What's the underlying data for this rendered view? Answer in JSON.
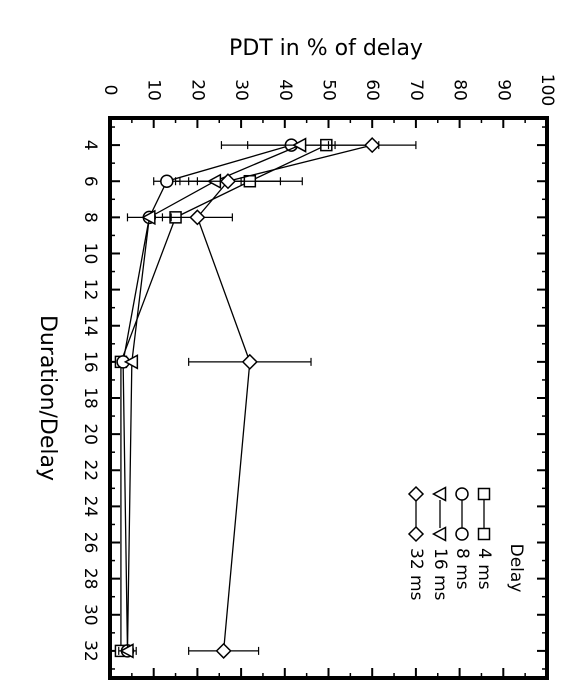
{
  "chart_data": {
    "type": "line",
    "title": "",
    "orientation": "rotated-90-clockwise",
    "xlabel": "Duration/Delay",
    "ylabel": "PDT in % of delay",
    "x_ticks": [
      4,
      6,
      8,
      10,
      12,
      14,
      16,
      18,
      20,
      22,
      24,
      26,
      28,
      30,
      32
    ],
    "y_ticks": [
      0,
      10,
      20,
      30,
      40,
      50,
      60,
      70,
      80,
      90,
      100
    ],
    "xlim": [
      2.5,
      33.5
    ],
    "ylim": [
      0,
      100
    ],
    "grid": false,
    "legend": {
      "title": "Delay",
      "placement": "bottom-right",
      "entries": [
        "4 ms",
        "8 ms",
        "16 ms",
        "32 ms"
      ]
    },
    "series": [
      {
        "name": "4 ms",
        "marker": "square",
        "x": [
          4,
          6,
          8,
          16,
          32
        ],
        "values": [
          49.5,
          32,
          15,
          2.5,
          2.5
        ],
        "errors": [
          0,
          12,
          0,
          0,
          0
        ]
      },
      {
        "name": "8 ms",
        "marker": "circle",
        "x": [
          4,
          6,
          8,
          16,
          32
        ],
        "values": [
          41.5,
          13,
          9,
          3,
          4
        ],
        "errors": [
          10,
          3,
          5,
          0,
          2
        ]
      },
      {
        "name": "16 ms",
        "marker": "triangle",
        "x": [
          4,
          6,
          8,
          16,
          32
        ],
        "values": [
          43.5,
          24,
          9,
          5,
          4
        ],
        "errors": [
          18,
          6,
          0,
          0,
          0
        ]
      },
      {
        "name": "32 ms",
        "marker": "diamond",
        "x": [
          4,
          6,
          8,
          16,
          32
        ],
        "values": [
          60,
          27,
          20,
          32,
          26
        ],
        "errors": [
          10,
          12,
          8,
          14,
          8
        ]
      }
    ]
  }
}
